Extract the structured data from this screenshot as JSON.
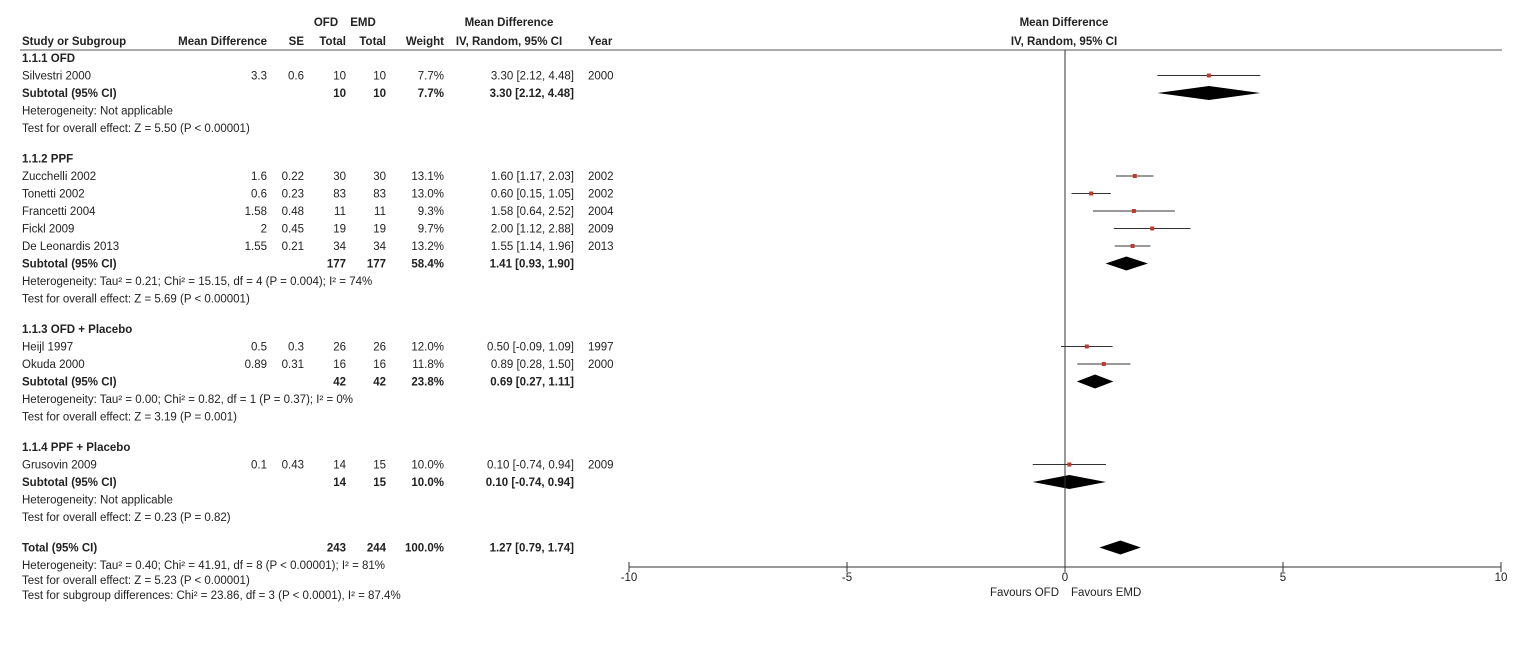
{
  "header": {
    "group1_row1": "OFD",
    "group2_row1": "EMD",
    "effect_row1": "Mean Difference",
    "study": "Study or Subgroup",
    "md": "Mean Difference",
    "se": "SE",
    "total1": "Total",
    "total2": "Total",
    "weight": "Weight",
    "effect_row2": "IV, Random, 95% CI",
    "year": "Year"
  },
  "plot_header": {
    "line1": "Mean Difference",
    "line2": "IV, Random, 95% CI"
  },
  "chart_data": {
    "type": "forest",
    "xlim": [
      -10,
      10
    ],
    "x_ticks": [
      "-10",
      "-5",
      "0",
      "5",
      "10"
    ],
    "favours_left": "Favours OFD",
    "favours_right": "Favours EMD",
    "subgroups": [
      {
        "title": "1.1.1 OFD",
        "studies": [
          {
            "name": "Silvestri 2000",
            "md": "3.3",
            "se": "0.6",
            "n1": "10",
            "n2": "10",
            "weight": "7.7%",
            "ci": "3.30 [2.12, 4.48]",
            "year": "2000",
            "est": 3.3,
            "lo": 2.12,
            "hi": 4.48
          }
        ],
        "subtotal": {
          "label": "Subtotal (95% CI)",
          "n1": "10",
          "n2": "10",
          "weight": "7.7%",
          "ci": "3.30 [2.12, 4.48]",
          "est": 3.3,
          "lo": 2.12,
          "hi": 4.48
        },
        "notes": [
          "Heterogeneity: Not applicable",
          "Test for overall effect: Z = 5.50 (P < 0.00001)"
        ]
      },
      {
        "title": "1.1.2 PPF",
        "studies": [
          {
            "name": "Zucchelli 2002",
            "md": "1.6",
            "se": "0.22",
            "n1": "30",
            "n2": "30",
            "weight": "13.1%",
            "ci": "1.60 [1.17, 2.03]",
            "year": "2002",
            "est": 1.6,
            "lo": 1.17,
            "hi": 2.03
          },
          {
            "name": "Tonetti 2002",
            "md": "0.6",
            "se": "0.23",
            "n1": "83",
            "n2": "83",
            "weight": "13.0%",
            "ci": "0.60 [0.15, 1.05]",
            "year": "2002",
            "est": 0.6,
            "lo": 0.15,
            "hi": 1.05
          },
          {
            "name": "Francetti 2004",
            "md": "1.58",
            "se": "0.48",
            "n1": "11",
            "n2": "11",
            "weight": "9.3%",
            "ci": "1.58 [0.64, 2.52]",
            "year": "2004",
            "est": 1.58,
            "lo": 0.64,
            "hi": 2.52
          },
          {
            "name": "Fickl 2009",
            "md": "2",
            "se": "0.45",
            "n1": "19",
            "n2": "19",
            "weight": "9.7%",
            "ci": "2.00 [1.12, 2.88]",
            "year": "2009",
            "est": 2.0,
            "lo": 1.12,
            "hi": 2.88
          },
          {
            "name": "De Leonardis 2013",
            "md": "1.55",
            "se": "0.21",
            "n1": "34",
            "n2": "34",
            "weight": "13.2%",
            "ci": "1.55 [1.14, 1.96]",
            "year": "2013",
            "est": 1.55,
            "lo": 1.14,
            "hi": 1.96
          }
        ],
        "subtotal": {
          "label": "Subtotal (95% CI)",
          "n1": "177",
          "n2": "177",
          "weight": "58.4%",
          "ci": "1.41 [0.93, 1.90]",
          "est": 1.41,
          "lo": 0.93,
          "hi": 1.9
        },
        "notes": [
          "Heterogeneity: Tau² = 0.21; Chi² = 15.15, df = 4 (P = 0.004); I² = 74%",
          "Test for overall effect: Z = 5.69 (P < 0.00001)"
        ]
      },
      {
        "title": "1.1.3 OFD + Placebo",
        "studies": [
          {
            "name": "Heijl 1997",
            "md": "0.5",
            "se": "0.3",
            "n1": "26",
            "n2": "26",
            "weight": "12.0%",
            "ci": "0.50 [-0.09, 1.09]",
            "year": "1997",
            "est": 0.5,
            "lo": -0.09,
            "hi": 1.09
          },
          {
            "name": "Okuda 2000",
            "md": "0.89",
            "se": "0.31",
            "n1": "16",
            "n2": "16",
            "weight": "11.8%",
            "ci": "0.89 [0.28, 1.50]",
            "year": "2000",
            "est": 0.89,
            "lo": 0.28,
            "hi": 1.5
          }
        ],
        "subtotal": {
          "label": "Subtotal (95% CI)",
          "n1": "42",
          "n2": "42",
          "weight": "23.8%",
          "ci": "0.69 [0.27, 1.11]",
          "est": 0.69,
          "lo": 0.27,
          "hi": 1.11
        },
        "notes": [
          "Heterogeneity: Tau² = 0.00; Chi² = 0.82, df = 1 (P = 0.37); I² = 0%",
          "Test for overall effect: Z = 3.19 (P = 0.001)"
        ]
      },
      {
        "title": "1.1.4 PPF + Placebo",
        "studies": [
          {
            "name": "Grusovin 2009",
            "md": "0.1",
            "se": "0.43",
            "n1": "14",
            "n2": "15",
            "weight": "10.0%",
            "ci": "0.10 [-0.74, 0.94]",
            "year": "2009",
            "est": 0.1,
            "lo": -0.74,
            "hi": 0.94
          }
        ],
        "subtotal": {
          "label": "Subtotal (95% CI)",
          "n1": "14",
          "n2": "15",
          "weight": "10.0%",
          "ci": "0.10 [-0.74, 0.94]",
          "est": 0.1,
          "lo": -0.74,
          "hi": 0.94
        },
        "notes": [
          "Heterogeneity: Not applicable",
          "Test for overall effect: Z = 0.23 (P = 0.82)"
        ]
      }
    ],
    "total": {
      "label": "Total (95% CI)",
      "n1": "243",
      "n2": "244",
      "weight": "100.0%",
      "ci": "1.27 [0.79, 1.74]",
      "est": 1.27,
      "lo": 0.79,
      "hi": 1.74
    },
    "total_notes": [
      "Heterogeneity: Tau² = 0.40; Chi² = 41.91, df = 8 (P < 0.00001); I² = 81%",
      "Test for overall effect: Z = 5.23 (P < 0.00001)",
      "Test for subgroup differences: Chi² = 23.86, df = 3 (P < 0.0001), I² = 87.4%"
    ],
    "colors": {
      "point": "#c0392b",
      "diamond": "#000000",
      "line": "#333333"
    }
  }
}
